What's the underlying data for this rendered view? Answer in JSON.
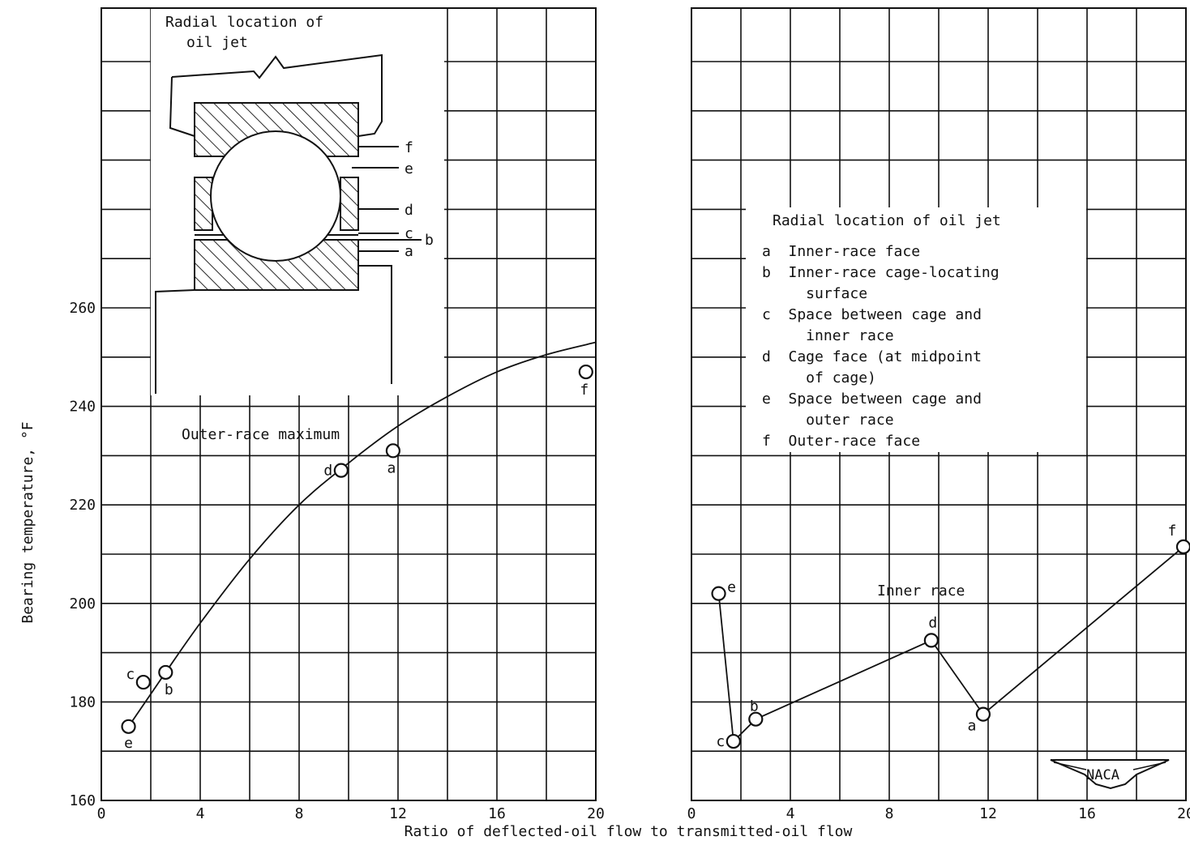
{
  "figure": {
    "xlabel": "Ratio of deflected-oil flow to transmitted-oil flow",
    "ylabel": "Bearing temperature, °F",
    "logo_text": "NACA"
  },
  "chart_data": [
    {
      "type": "line",
      "panel": "left",
      "series": [
        {
          "name": "Outer-race maximum",
          "points": [
            {
              "label": "e",
              "x": 1.1,
              "y": 175
            },
            {
              "label": "c",
              "x": 1.7,
              "y": 184
            },
            {
              "label": "b",
              "x": 2.6,
              "y": 186
            },
            {
              "label": "d",
              "x": 9.7,
              "y": 227
            },
            {
              "label": "a",
              "x": 11.8,
              "y": 231
            },
            {
              "label": "f",
              "x": 19.6,
              "y": 247
            }
          ],
          "fit_curve": [
            [
              2.6,
              186
            ],
            [
              4,
              196
            ],
            [
              6,
              209
            ],
            [
              8,
              220
            ],
            [
              10,
              228.5
            ],
            [
              12,
              236
            ],
            [
              14,
              242
            ],
            [
              16,
              247
            ],
            [
              18,
              250.5
            ],
            [
              20,
              253
            ]
          ]
        }
      ],
      "xlim": [
        0,
        20
      ],
      "ylim": [
        160,
        260
      ],
      "xticks": [
        0,
        4,
        8,
        12,
        16,
        20
      ],
      "yticks": [
        160,
        180,
        200,
        220,
        240,
        260
      ],
      "xticklabels": [
        "0",
        "4",
        "8",
        "12",
        "16",
        "20"
      ],
      "yticklabels": [
        "160",
        "180",
        "200",
        "220",
        "240",
        "260"
      ],
      "grid": true,
      "inset": {
        "title_line1": "Radial location of",
        "title_line2": "oil jet",
        "labels": [
          "f",
          "e",
          "d",
          "c",
          "b",
          "a"
        ]
      }
    },
    {
      "type": "line",
      "panel": "right",
      "series": [
        {
          "name": "Inner race",
          "points": [
            {
              "label": "e",
              "x": 1.1,
              "y": 202
            },
            {
              "label": "c",
              "x": 1.7,
              "y": 172
            },
            {
              "label": "b",
              "x": 2.6,
              "y": 176.5
            },
            {
              "label": "d",
              "x": 9.7,
              "y": 192.5
            },
            {
              "label": "a",
              "x": 11.8,
              "y": 177.5
            },
            {
              "label": "f",
              "x": 19.9,
              "y": 211.5
            }
          ]
        }
      ],
      "xlim": [
        0,
        20
      ],
      "ylim": [
        160,
        260
      ],
      "xticks": [
        0,
        4,
        8,
        12,
        16,
        20
      ],
      "xticklabels": [
        "0",
        "4",
        "8",
        "12",
        "16",
        "20"
      ],
      "grid": true,
      "legend": {
        "title": "Radial location of oil jet",
        "lines": [
          "a  Inner-race face",
          "b  Inner-race cage-locating",
          "     surface",
          "c  Space between cage and",
          "     inner race",
          "d  Cage face (at midpoint",
          "     of cage)",
          "e  Space between cage and",
          "     outer race",
          "f  Outer-race face"
        ]
      }
    }
  ]
}
